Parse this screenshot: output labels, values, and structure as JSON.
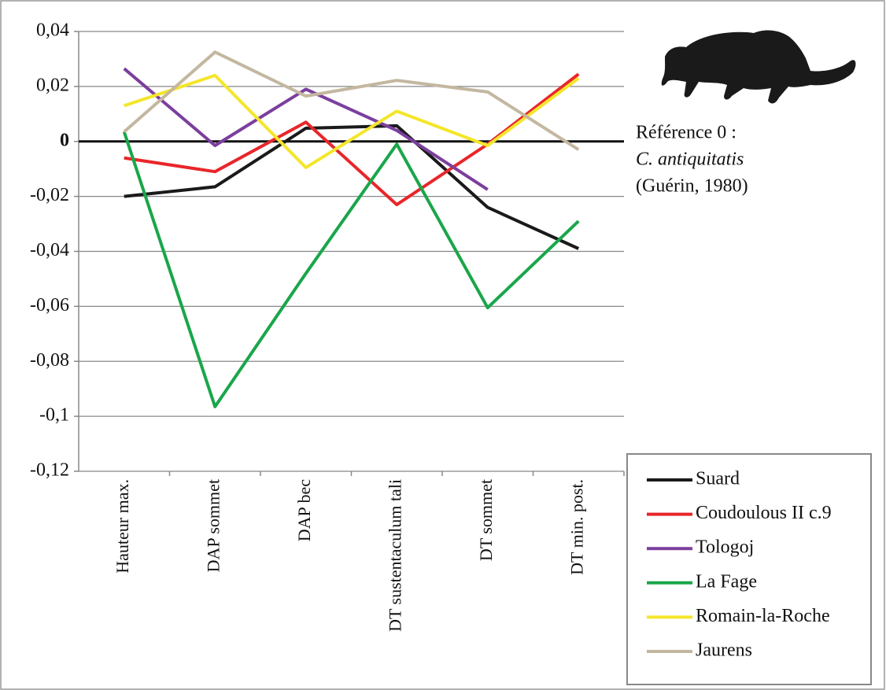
{
  "chart_data": {
    "type": "line",
    "categories": [
      "Hauteur max.",
      "DAP sommet",
      "DAP bec",
      "DT sustentaculum tali",
      "DT sommet",
      "DT min. post."
    ],
    "series": [
      {
        "name": "Suard",
        "color": "#1a1a1a",
        "values": [
          -0.02,
          -0.0165,
          0.0048,
          0.0057,
          -0.024,
          -0.039
        ]
      },
      {
        "name": "Coudoulous II c.9",
        "color": "#e8262a",
        "values": [
          -0.006,
          -0.011,
          0.007,
          -0.023,
          -0.001,
          0.0245
        ]
      },
      {
        "name": "Tologoj",
        "color": "#7b3f9e",
        "values": [
          0.0265,
          -0.0015,
          0.019,
          0.004,
          -0.0175,
          null
        ]
      },
      {
        "name": "La Fage",
        "color": "#1aa64a",
        "values": [
          0.0035,
          -0.0965,
          -0.048,
          -0.001,
          -0.0605,
          -0.029
        ]
      },
      {
        "name": "Romain-la-Roche",
        "color": "#f4e62a",
        "values": [
          0.013,
          0.024,
          -0.0095,
          0.011,
          -0.0015,
          0.023
        ]
      },
      {
        "name": "Jaurens",
        "color": "#c4b7a0",
        "values": [
          0.0035,
          0.0325,
          0.0165,
          0.0222,
          0.018,
          -0.003
        ]
      }
    ],
    "ylim": [
      -0.12,
      0.04
    ],
    "yticks": [
      {
        "value": -0.12,
        "label": "-0,12"
      },
      {
        "value": -0.1,
        "label": "-0,1"
      },
      {
        "value": -0.08,
        "label": "-0,08"
      },
      {
        "value": -0.06,
        "label": "-0,06"
      },
      {
        "value": -0.04,
        "label": "-0,04"
      },
      {
        "value": -0.02,
        "label": "-0,02"
      },
      0,
      {
        "value": 0.02,
        "label": "0,02"
      },
      {
        "value": 0.04,
        "label": "0,04"
      }
    ],
    "grid": true,
    "annotation": [
      "Référence 0 :",
      "C. antiquitatis",
      "(Guérin, 1980)"
    ]
  }
}
